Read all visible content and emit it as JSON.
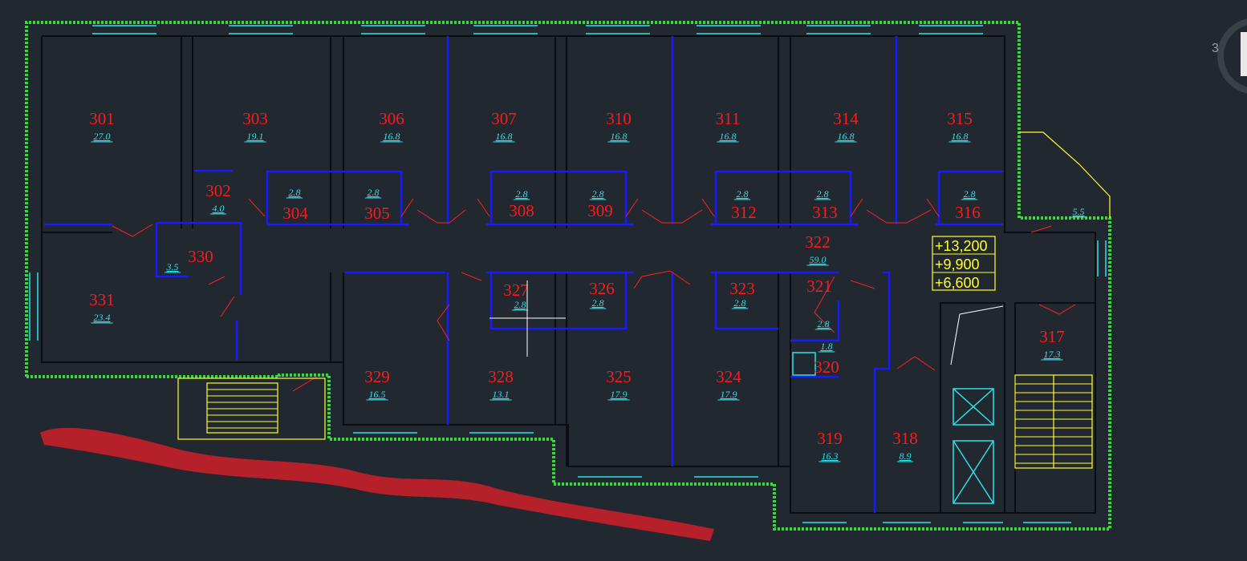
{
  "viewport": {
    "nav_cube_label": "3"
  },
  "colors": {
    "background": "#212830",
    "room_number": "#ff1a1a",
    "room_area": "#2fe0e8",
    "partition": "#1a1aff",
    "outer_wall": "#33dd33",
    "stairs": "#ffff33",
    "markup_stroke": "#b5202a"
  },
  "rooms": [
    {
      "number": "301",
      "area": "27.0"
    },
    {
      "number": "303",
      "area": "19.1"
    },
    {
      "number": "306",
      "area": "16.8"
    },
    {
      "number": "307",
      "area": "16.8"
    },
    {
      "number": "310",
      "area": "16.8"
    },
    {
      "number": "311",
      "area": "16.8"
    },
    {
      "number": "314",
      "area": "16.8"
    },
    {
      "number": "315",
      "area": "16.8"
    },
    {
      "number": "302",
      "area": "4.0"
    },
    {
      "number": "304",
      "area": "2.8"
    },
    {
      "number": "305",
      "area": "2.8"
    },
    {
      "number": "308",
      "area": "2.8"
    },
    {
      "number": "309",
      "area": "2.8"
    },
    {
      "number": "312",
      "area": "2.8"
    },
    {
      "number": "313",
      "area": "2.8"
    },
    {
      "number": "316",
      "area": "2.8"
    },
    {
      "number": "330",
      "area": "3.5"
    },
    {
      "number": "322",
      "area": "59.0"
    },
    {
      "number": "331",
      "area": "23.4"
    },
    {
      "number": "327",
      "area": "2.8"
    },
    {
      "number": "326",
      "area": "2.8"
    },
    {
      "number": "323",
      "area": "2.8"
    },
    {
      "number": "321",
      "area": "2.8"
    },
    {
      "number": "320",
      "area": "1.8"
    },
    {
      "number": "329",
      "area": "16.5"
    },
    {
      "number": "328",
      "area": "13.1"
    },
    {
      "number": "325",
      "area": "17.9"
    },
    {
      "number": "324",
      "area": "17.9"
    },
    {
      "number": "319",
      "area": "16.3"
    },
    {
      "number": "318",
      "area": "8.9"
    },
    {
      "number": "317",
      "area": "17.3"
    },
    {
      "number": "",
      "area": "5.5"
    }
  ],
  "elevations": [
    "+13,200",
    "+9,900",
    "+6,600"
  ]
}
